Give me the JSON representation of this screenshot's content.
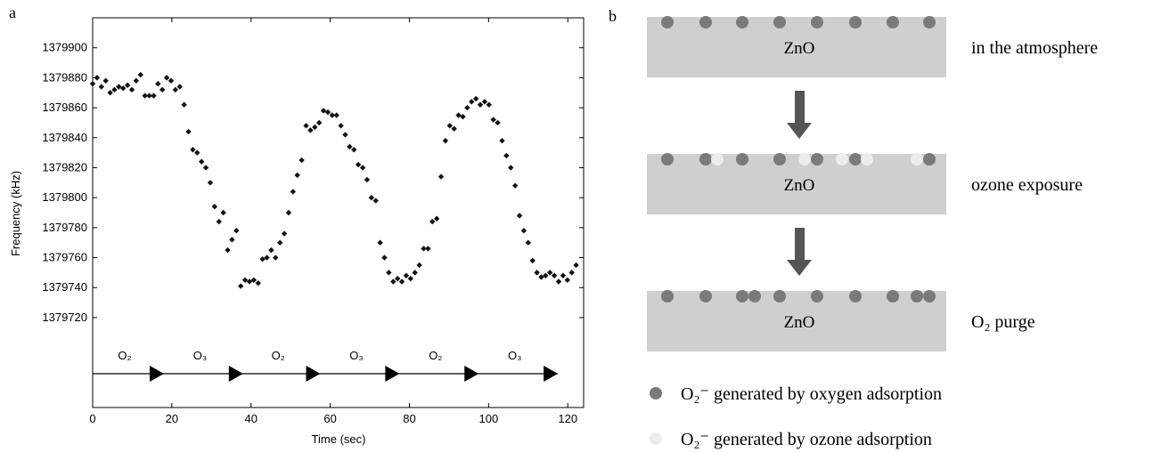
{
  "chart_data": {
    "type": "scatter",
    "panel_label": "a",
    "xlabel": "Time (sec)",
    "ylabel": "Frequency (kHz)",
    "color": "#111111",
    "xlim": [
      0,
      124
    ],
    "ylim": [
      1379660,
      1379920
    ],
    "xticks": [
      0,
      20,
      40,
      60,
      80,
      100,
      120
    ],
    "yticks": [
      1379720,
      1379740,
      1379760,
      1379780,
      1379800,
      1379820,
      1379840,
      1379860,
      1379880,
      1379900
    ],
    "x": [
      0,
      1.1,
      2.2,
      3.3,
      4.4,
      5.5,
      6.6,
      7.7,
      8.8,
      9.9,
      11,
      12.1,
      13.2,
      14.3,
      15.4,
      16.5,
      17.6,
      18.7,
      19.8,
      20.9,
      22,
      23.1,
      24.2,
      25.3,
      26.4,
      27.5,
      28.6,
      29.7,
      30.8,
      31.9,
      33,
      34.1,
      35.2,
      36.3,
      37.4,
      38.5,
      39.6,
      40.7,
      41.8,
      42.9,
      44,
      45.1,
      46.2,
      47.3,
      48.4,
      49.5,
      50.6,
      51.7,
      52.8,
      53.9,
      55,
      56.1,
      57.2,
      58.3,
      59.4,
      60.5,
      61.6,
      62.7,
      63.8,
      64.9,
      66,
      67.1,
      68.2,
      69.3,
      70.4,
      71.5,
      72.6,
      73.7,
      74.8,
      75.9,
      77,
      78.1,
      79.2,
      80.3,
      81.4,
      82.5,
      83.6,
      84.7,
      85.8,
      86.9,
      88,
      89.1,
      90.2,
      91.3,
      92.4,
      93.5,
      94.6,
      95.7,
      96.8,
      97.9,
      99,
      100.1,
      101.2,
      102.3,
      103.4,
      104.5,
      105.6,
      106.7,
      107.8,
      108.9,
      110,
      111.1,
      112.2,
      113.3,
      114.4,
      115.5,
      116.6,
      117.7,
      118.8,
      119.9,
      121,
      122.1
    ],
    "values": [
      1379876,
      1379880,
      1379874,
      1379878,
      1379870,
      1379872,
      1379874,
      1379873,
      1379875,
      1379872,
      1379878,
      1379882,
      1379868,
      1379868,
      1379868,
      1379876,
      1379872,
      1379880,
      1379878,
      1379872,
      1379874,
      1379862,
      1379844,
      1379832,
      1379830,
      1379824,
      1379820,
      1379810,
      1379794,
      1379784,
      1379790,
      1379765,
      1379772,
      1379778,
      1379741,
      1379745,
      1379744,
      1379745,
      1379743,
      1379759,
      1379760,
      1379765,
      1379760,
      1379770,
      1379776,
      1379790,
      1379804,
      1379815,
      1379825,
      1379848,
      1379845,
      1379847,
      1379850,
      1379858,
      1379857,
      1379855,
      1379855,
      1379848,
      1379842,
      1379834,
      1379832,
      1379822,
      1379820,
      1379812,
      1379800,
      1379798,
      1379770,
      1379760,
      1379750,
      1379744,
      1379746,
      1379744,
      1379748,
      1379746,
      1379750,
      1379755,
      1379766,
      1379766,
      1379784,
      1379786,
      1379814,
      1379838,
      1379848,
      1379846,
      1379855,
      1379854,
      1379860,
      1379864,
      1379866,
      1379862,
      1379864,
      1379862,
      1379852,
      1379850,
      1379838,
      1379828,
      1379820,
      1379808,
      1379788,
      1379778,
      1379770,
      1379758,
      1379750,
      1379747,
      1379748,
      1379750,
      1379748,
      1379744,
      1379748,
      1379745,
      1379750,
      1379755
    ],
    "phases": [
      {
        "label": "O₂",
        "end": 18
      },
      {
        "label": "O₃",
        "end": 38
      },
      {
        "label": "O₂",
        "end": 57.5
      },
      {
        "label": "O₃",
        "end": 77.5
      },
      {
        "label": "O₂",
        "end": 97.5
      },
      {
        "label": "O₃",
        "end": 117.5
      }
    ]
  },
  "diagram": {
    "panel_label": "b",
    "blocks": [
      {
        "material": "ZnO",
        "caption": "in the atmosphere"
      },
      {
        "material": "ZnO",
        "caption": "ozone exposure"
      },
      {
        "material": "ZnO",
        "caption": "O₂ purge"
      }
    ],
    "legend": [
      "O₂⁻ generated by oxygen adsorption",
      "O₂⁻ generated by ozone adsorption"
    ]
  }
}
